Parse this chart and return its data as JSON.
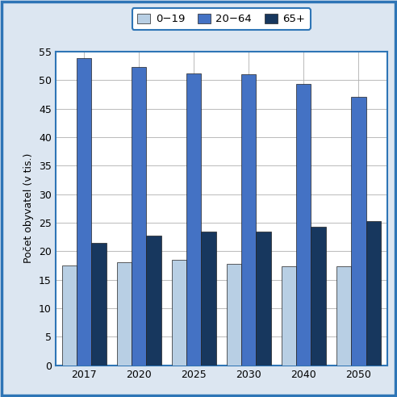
{
  "years": [
    2017,
    2020,
    2025,
    2030,
    2040,
    2050
  ],
  "series": {
    "0-19": [
      17.5,
      18.0,
      18.5,
      17.8,
      17.3,
      17.3
    ],
    "20-64": [
      53.8,
      52.3,
      51.2,
      51.0,
      49.3,
      47.0
    ],
    "65+": [
      21.5,
      22.7,
      23.5,
      23.5,
      24.3,
      25.3
    ]
  },
  "colors": {
    "0-19": "#b8cfe4",
    "20-64": "#4472c4",
    "65+": "#17375e"
  },
  "legend_labels": [
    "0−19",
    "20−64",
    "65+"
  ],
  "ylabel": "Počet obyvatel (v tis.)",
  "ylim": [
    0,
    55
  ],
  "yticks": [
    0,
    5,
    10,
    15,
    20,
    25,
    30,
    35,
    40,
    45,
    50,
    55
  ],
  "background_color": "#dce6f1",
  "plot_bg_color": "#ffffff",
  "border_color": "#2e75b6",
  "bar_edge_color": "#222222",
  "bar_width": 0.27,
  "label_fontsize": 9,
  "tick_fontsize": 9,
  "legend_fontsize": 9.5
}
